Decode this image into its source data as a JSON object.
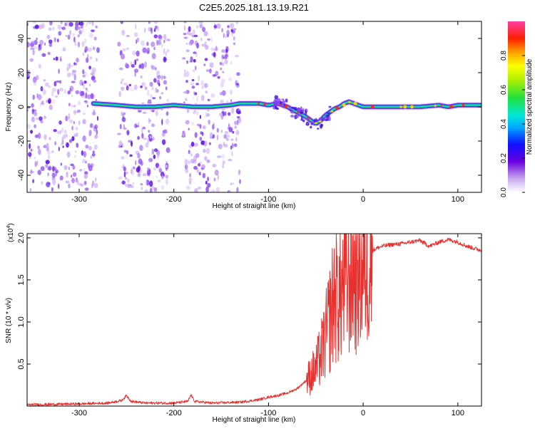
{
  "title": "C2E5.2025.181.13.19.R21",
  "chart_data": [
    {
      "type": "heatmap",
      "xlabel": "Height of straight line (km)",
      "ylabel": "Frequency (Hz)",
      "xlim": [
        -355,
        125
      ],
      "ylim": [
        -50,
        50
      ],
      "x_ticks": [
        -300,
        -200,
        -100,
        0,
        100
      ],
      "x_tick_labels": [
        "-300",
        "-200",
        "-100",
        "0",
        "100"
      ],
      "y_ticks": [
        -40,
        -20,
        0,
        20,
        40
      ],
      "y_tick_labels": [
        "-40",
        "-20",
        "0",
        "20",
        "40"
      ],
      "noise_bands_km": [
        [
          -355,
          -280
        ],
        [
          -258,
          -205
        ],
        [
          -190,
          -130
        ]
      ],
      "ridge": {
        "x": [
          -285,
          -260,
          -240,
          -220,
          -200,
          -180,
          -160,
          -140,
          -130,
          -110,
          -100,
          -90,
          -80,
          -70,
          -60,
          -50,
          -45,
          -40,
          -35,
          -30,
          -25,
          -20,
          -15,
          -10,
          -5,
          0,
          20,
          40,
          60,
          80,
          90,
          100,
          125
        ],
        "y": [
          2,
          1,
          0,
          0,
          1,
          0,
          0,
          1,
          2,
          2,
          1,
          2,
          0,
          -3,
          -6,
          -10,
          -8,
          -5,
          -3,
          -1,
          0,
          2,
          3,
          2,
          1,
          0,
          0,
          0,
          0,
          1,
          0,
          1,
          1
        ]
      },
      "colorbar": {
        "label": "Normalized spectral amplitude",
        "ticks": [
          0.0,
          0.2,
          0.4,
          0.6,
          0.8
        ],
        "tick_labels": [
          "0.0",
          "0.2",
          "0.4",
          "0.6",
          "0.8"
        ],
        "range": [
          0,
          1
        ]
      },
      "grid": false,
      "legend": "none"
    },
    {
      "type": "line",
      "xlabel": "Height of straight line (km)",
      "ylabel": "SNR (10 * v/v)",
      "scale_label": "(x10",
      "scale_exponent": "4",
      "scale_close": ")",
      "xlim": [
        -355,
        125
      ],
      "ylim": [
        0,
        2.05
      ],
      "x_ticks": [
        -300,
        -200,
        -100,
        0,
        100
      ],
      "x_tick_labels": [
        "-300",
        "-200",
        "-100",
        "0",
        "100"
      ],
      "y_ticks": [
        0.5,
        1.0,
        1.5,
        2.0
      ],
      "y_tick_labels": [
        "0.5",
        "1.0",
        "1.5",
        "2.0"
      ],
      "series_color": "#e8302e",
      "series": [
        {
          "name": "",
          "x": [
            -355,
            -300,
            -270,
            -255,
            -250,
            -245,
            -230,
            -200,
            -185,
            -182,
            -178,
            -160,
            -130,
            -110,
            -100,
            -90,
            -80,
            -70,
            -60,
            -50,
            -45,
            -40,
            -35,
            -30,
            -25,
            -20,
            -15,
            -10,
            -5,
            0,
            5,
            10,
            15,
            20,
            30,
            40,
            60,
            70,
            80,
            90,
            100,
            110,
            125
          ],
          "y": [
            0.01,
            0.02,
            0.03,
            0.06,
            0.12,
            0.05,
            0.03,
            0.03,
            0.05,
            0.13,
            0.05,
            0.03,
            0.04,
            0.07,
            0.1,
            0.12,
            0.15,
            0.2,
            0.3,
            0.45,
            0.6,
            0.8,
            1.05,
            1.35,
            1.3,
            1.45,
            1.55,
            1.6,
            1.65,
            1.75,
            1.8,
            1.85,
            1.88,
            1.9,
            1.92,
            1.93,
            1.97,
            1.9,
            1.95,
            1.98,
            1.95,
            1.9,
            1.85
          ]
        }
      ],
      "grid": false,
      "legend": "none"
    }
  ]
}
